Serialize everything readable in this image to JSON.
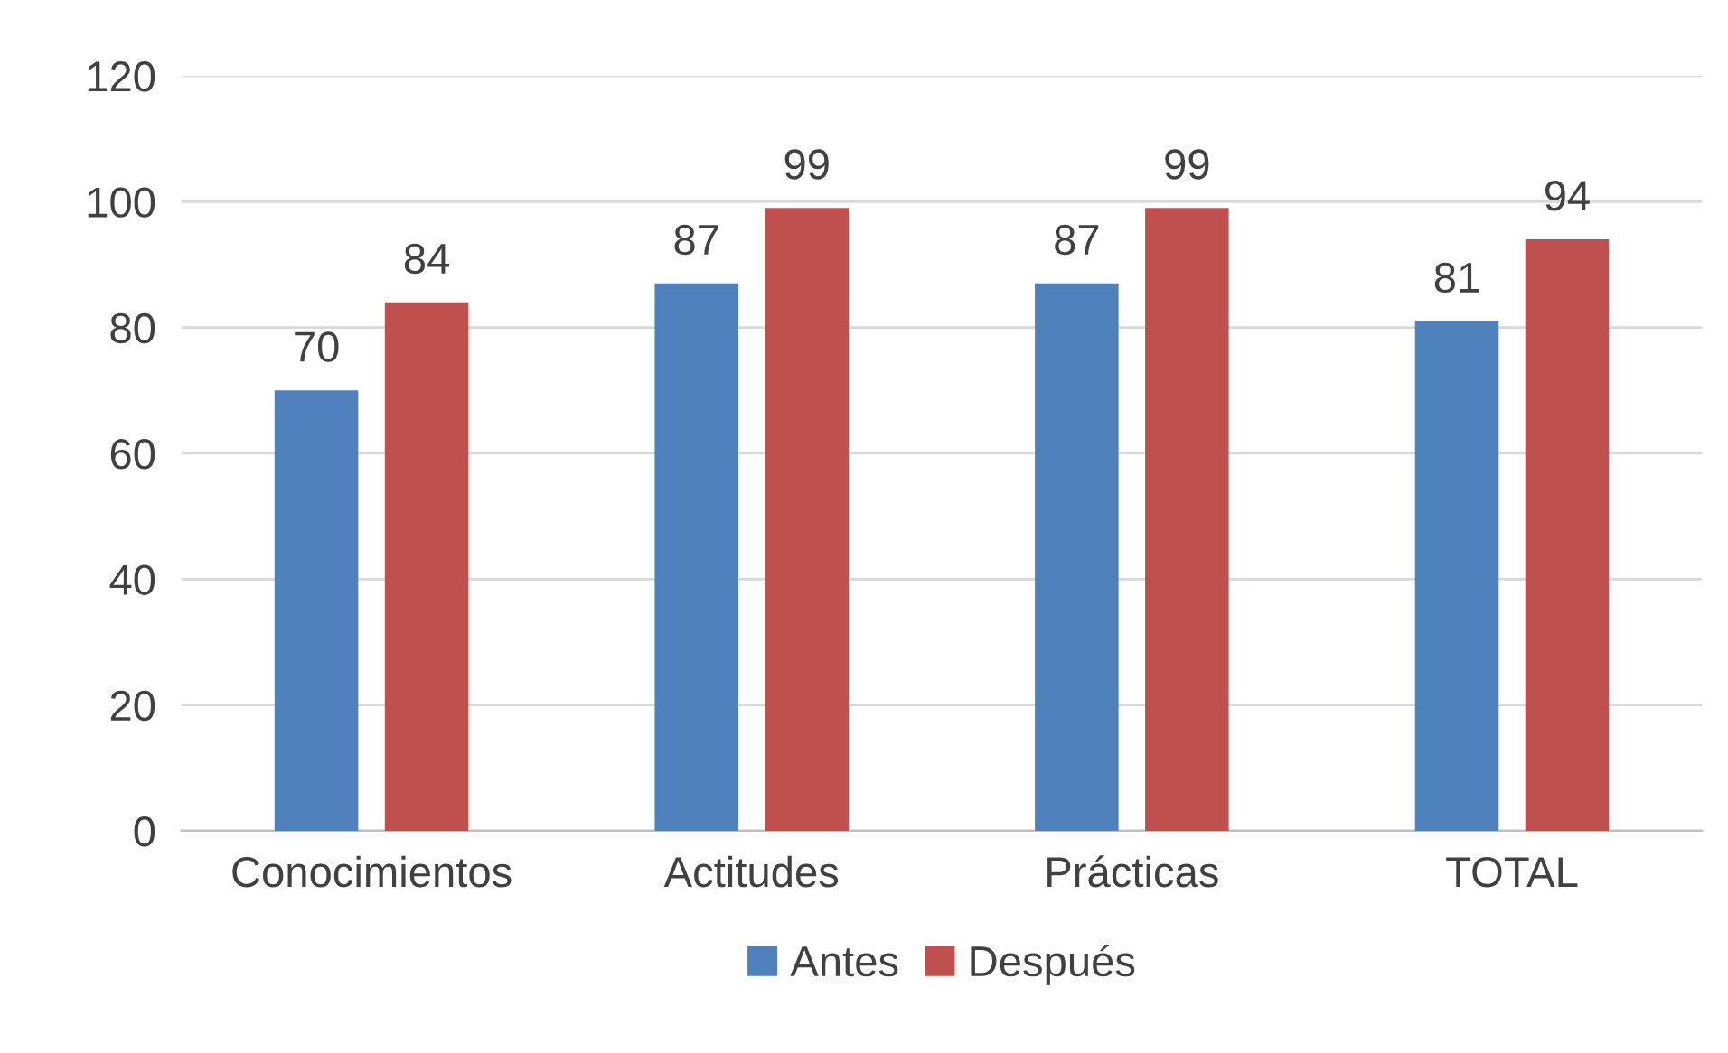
{
  "chart_data": {
    "type": "bar",
    "categories": [
      "Conocimientos",
      "Actitudes",
      "Prácticas",
      "TOTAL"
    ],
    "series": [
      {
        "name": "Antes",
        "color": "#4f81bd",
        "values": [
          70,
          87,
          87,
          81
        ]
      },
      {
        "name": "Después",
        "color": "#c0504d",
        "values": [
          84,
          99,
          99,
          94
        ]
      }
    ],
    "ylim": [
      0,
      120
    ],
    "yticks": [
      0,
      20,
      40,
      60,
      80,
      100,
      120
    ],
    "grid": "y",
    "legend": "bottom",
    "data_labels": true
  }
}
